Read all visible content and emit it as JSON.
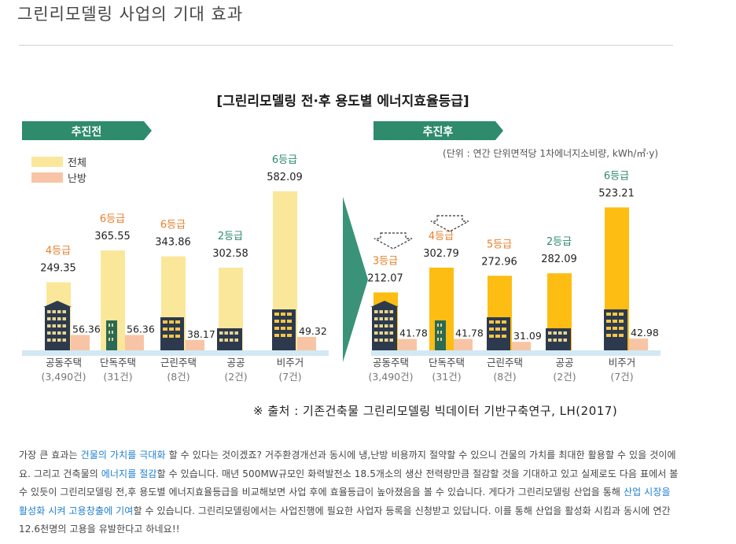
{
  "post": {
    "title": "그린리모델링 사업의 기대 효과"
  },
  "chart_data": {
    "type": "bar",
    "title": "[그린리모델링 전·후 용도별 에너지효율등급]",
    "unit_note": "(단위 : 연간 단위면적당 1차에너지소비량, kWh/㎡·y)",
    "legend": [
      "전체",
      "난방"
    ],
    "colors": {
      "before_total": "#fbe79a",
      "after_total": "#fdbd13",
      "heating": "#f7c5a5",
      "tag": "#2e8b6c",
      "grade_orange": "#e8802c",
      "grade_green": "#2e8b6c",
      "base": "#d3e8f3"
    },
    "categories": [
      {
        "name": "공동주택",
        "count": "(3,490건)"
      },
      {
        "name": "단독주택",
        "count": "(31건)"
      },
      {
        "name": "근린주택",
        "count": "(8건)"
      },
      {
        "name": "공공",
        "count": "(2건)"
      },
      {
        "name": "비주거",
        "count": "(7건)"
      }
    ],
    "panels": [
      {
        "label": "추진전",
        "series": [
          {
            "name": "전체",
            "values": [
              249.35,
              365.55,
              343.86,
              302.58,
              582.09
            ]
          },
          {
            "name": "난방",
            "values": [
              56.36,
              56.36,
              38.17,
              0,
              49.32
            ]
          }
        ],
        "value_labels": {
          "total": [
            "249.35",
            "365.55",
            "343.86",
            "302.58",
            "582.09"
          ],
          "heating": [
            "56.36",
            "56.36",
            "38.17",
            "",
            "49.32"
          ]
        },
        "grades": [
          "4등급",
          "6등급",
          "6등급",
          "2등급",
          "6등급"
        ],
        "grade_colors": [
          "orange",
          "orange",
          "orange",
          "green",
          "green"
        ]
      },
      {
        "label": "추진후",
        "series": [
          {
            "name": "전체",
            "values": [
              212.07,
              302.79,
              272.96,
              282.09,
              523.21
            ]
          },
          {
            "name": "난방",
            "values": [
              41.78,
              41.78,
              31.09,
              0,
              42.98
            ]
          }
        ],
        "value_labels": {
          "total": [
            "212.07",
            "302.79",
            "272.96",
            "282.09",
            "523.21"
          ],
          "heating": [
            "41.78",
            "41.78",
            "31.09",
            "",
            "42.98"
          ]
        },
        "grades": [
          "3등급",
          "4등급",
          "5등급",
          "2등급",
          "6등급"
        ],
        "grade_colors": [
          "orange",
          "orange",
          "orange",
          "green",
          "green"
        ]
      }
    ]
  },
  "source": "※ 출처 : 기존건축물 그린리모델링 빅데이터 기반구축연구, LH(2017)",
  "paragraph": {
    "p1": "가장 큰 효과는 ",
    "h1": "건물의 가치를 극대화",
    "p2": " 할 수 있다는 것이겠죠? 거주환경개선과 동시에 냉,난방 비용까지 절약할 수 있으니 건물의 가치를 최대한 활용할 수 있을 것이에요. 그리고 건축물의 ",
    "h2": "에너지를 절감",
    "p3": "할 수 있습니다. 매년 500MW규모인 화력발전소 18.5개소의 생산 전력량만큼 절감할 것을 기대하고 있고 실제로도 다음 표에서 볼 수 있듯이 그린리모델링 전,후 용도별 에너지효율등급을 비교해보면 사업 후에 효율등급이 높아졌음을 볼 수 있습니다. 게다가 그린리모델링 산업을 통해 ",
    "h3": "산업 시장을 활성화 시켜 고용창출에 기여",
    "p4": "할 수 있습니다. 그린리모델링에서는 사업진행에 필요한 사업자 등록을 신청받고 있답니다. 이를 통해 산업을 활성화 시킴과 동시에 연간 12.6천명의 고용을 유발한다고 하네요!!"
  }
}
